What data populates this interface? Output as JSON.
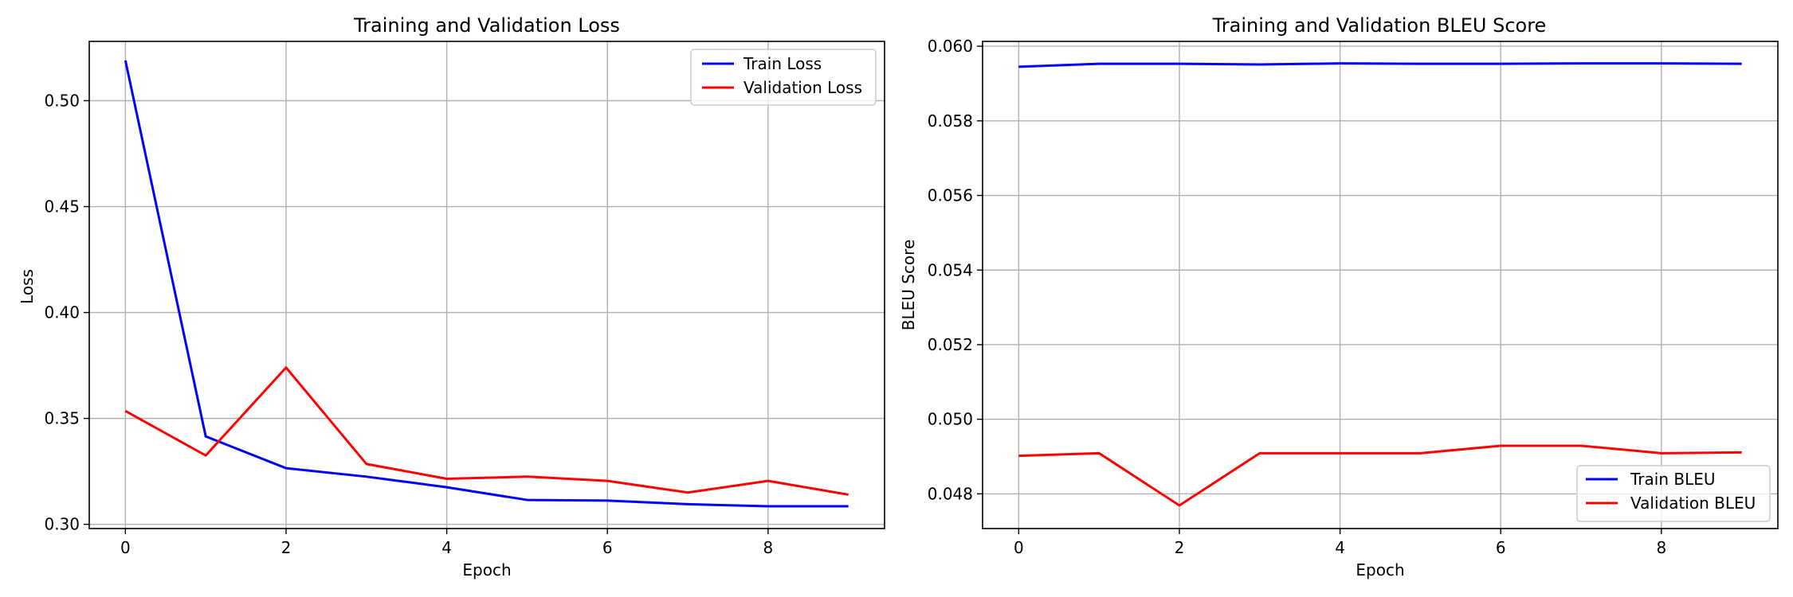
{
  "chart_data": [
    {
      "type": "line",
      "title": "Training and Validation Loss",
      "xlabel": "Epoch",
      "ylabel": "Loss",
      "x": [
        0,
        1,
        2,
        3,
        4,
        5,
        6,
        7,
        8,
        9
      ],
      "xlim": [
        -0.45,
        9.45
      ],
      "ylim": [
        0.298,
        0.528
      ],
      "xticks": [
        0,
        2,
        4,
        6,
        8
      ],
      "yticks": [
        0.3,
        0.35,
        0.4,
        0.45,
        0.5
      ],
      "xtick_labels": [
        "0",
        "2",
        "4",
        "6",
        "8"
      ],
      "ytick_labels": [
        "0.30",
        "0.35",
        "0.40",
        "0.45",
        "0.50"
      ],
      "grid": true,
      "legend": "upper right",
      "series": [
        {
          "name": "Train Loss",
          "color": "#0000ff",
          "values": [
            0.519,
            0.3415,
            0.3265,
            0.3225,
            0.3175,
            0.3115,
            0.3112,
            0.3095,
            0.3085,
            0.3085
          ]
        },
        {
          "name": "Validation Loss",
          "color": "#ff0000",
          "values": [
            0.3535,
            0.3325,
            0.374,
            0.3285,
            0.3215,
            0.3225,
            0.3205,
            0.315,
            0.3205,
            0.314
          ]
        }
      ]
    },
    {
      "type": "line",
      "title": "Training and Validation BLEU Score",
      "xlabel": "Epoch",
      "ylabel": "BLEU Score",
      "x": [
        0,
        1,
        2,
        3,
        4,
        5,
        6,
        7,
        8,
        9
      ],
      "xlim": [
        -0.45,
        9.45
      ],
      "ylim": [
        0.04707,
        0.06013
      ],
      "xticks": [
        0,
        2,
        4,
        6,
        8
      ],
      "yticks": [
        0.048,
        0.05,
        0.052,
        0.054,
        0.056,
        0.058,
        0.06
      ],
      "xtick_labels": [
        "0",
        "2",
        "4",
        "6",
        "8"
      ],
      "ytick_labels": [
        "0.048",
        "0.050",
        "0.052",
        "0.054",
        "0.056",
        "0.058",
        "0.060"
      ],
      "grid": true,
      "legend": "lower right",
      "series": [
        {
          "name": "Train BLEU",
          "color": "#0000ff",
          "values": [
            0.05945,
            0.05953,
            0.05953,
            0.05951,
            0.05954,
            0.05953,
            0.05953,
            0.05954,
            0.05954,
            0.05953
          ]
        },
        {
          "name": "Validation BLEU",
          "color": "#ff0000",
          "values": [
            0.04902,
            0.04909,
            0.04769,
            0.04909,
            0.04909,
            0.04909,
            0.04929,
            0.04929,
            0.04909,
            0.04911
          ]
        }
      ]
    }
  ]
}
